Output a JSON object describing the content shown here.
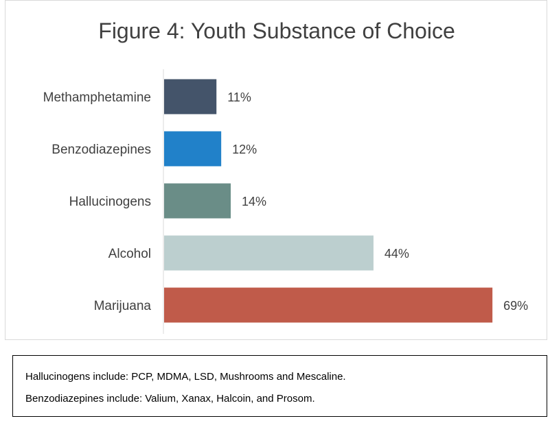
{
  "chart_data": {
    "type": "bar",
    "orientation": "horizontal",
    "title": "Figure 4: Youth Substance of Choice",
    "categories": [
      "Methamphetamine",
      "Benzodiazepines",
      "Hallucinogens",
      "Alcohol",
      "Marijuana"
    ],
    "values": [
      11,
      12,
      14,
      44,
      69
    ],
    "data_labels": [
      "11%",
      "12%",
      "14%",
      "44%",
      "69%"
    ],
    "colors": [
      "#44546a",
      "#2181c9",
      "#6a8d87",
      "#bccfcf",
      "#c05b4a"
    ],
    "unit": "%",
    "xlim": [
      0,
      70
    ],
    "grid": false,
    "legend": "none"
  },
  "notes": {
    "line1": "Hallucinogens include: PCP, MDMA, LSD, Mushrooms and Mescaline.",
    "line2": "Benzodiazepines include: Valium, Xanax, Halcoin, and Prosom."
  }
}
